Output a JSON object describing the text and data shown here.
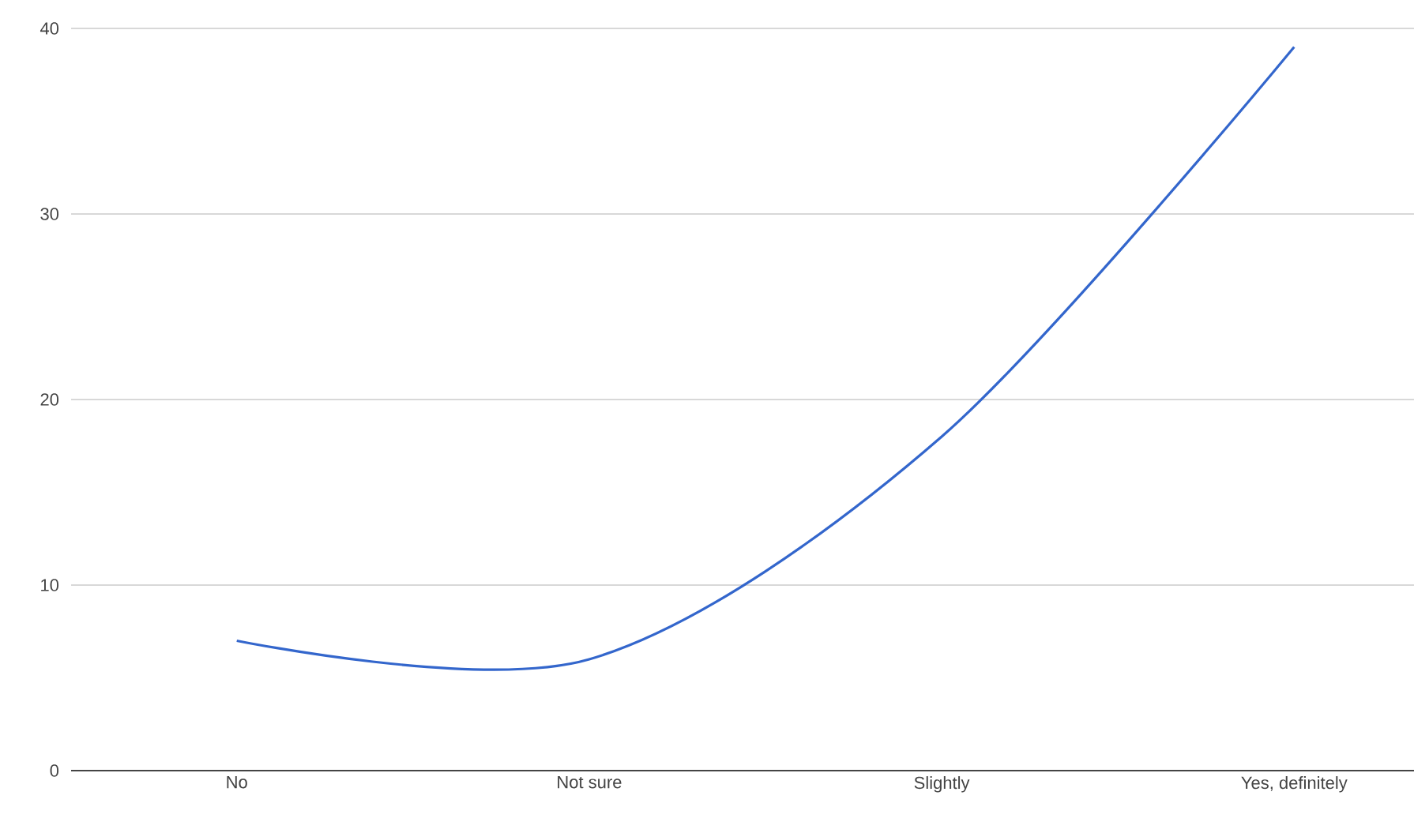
{
  "chart_data": {
    "type": "line",
    "categories": [
      "No",
      "Not sure",
      "Slightly",
      "Yes, definitely"
    ],
    "series": [
      {
        "color": "#3366cc",
        "values": [
          7,
          6,
          18,
          39
        ]
      }
    ],
    "ylim": [
      0,
      40
    ],
    "yticks": [
      0,
      10,
      20,
      30,
      40
    ],
    "grid": "y",
    "marker": "none",
    "line_style": "solid"
  }
}
